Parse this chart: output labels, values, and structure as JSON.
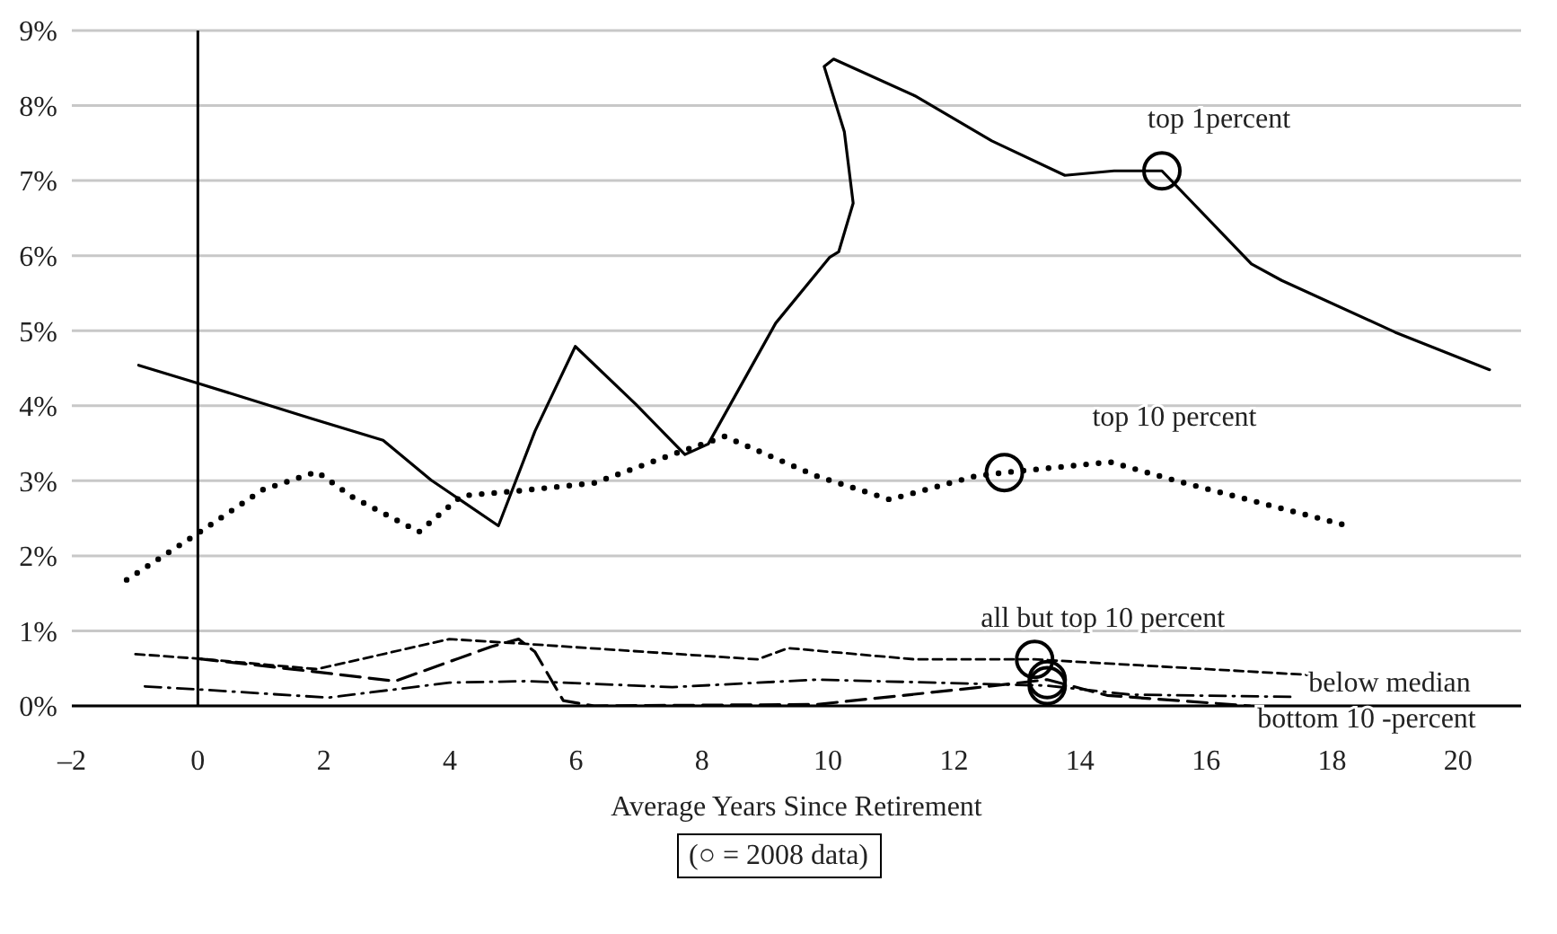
{
  "chart_data": {
    "type": "line",
    "xlabel": "Average Years Since Retirement",
    "xlim": [
      -2,
      21
    ],
    "xticks": [
      {
        "value": -2,
        "label": "–2"
      },
      0,
      2,
      4,
      6,
      8,
      10,
      12,
      14,
      16,
      18,
      20
    ],
    "ylim": [
      0,
      9
    ],
    "yticks": [
      {
        "value": 0,
        "label": "0%"
      },
      {
        "value": 1,
        "label": "1%"
      },
      {
        "value": 2,
        "label": "2%"
      },
      {
        "value": 3,
        "label": "3%"
      },
      {
        "value": 4,
        "label": "4%"
      },
      {
        "value": 5,
        "label": "5%"
      },
      {
        "value": 6,
        "label": "6%"
      },
      {
        "value": 7,
        "label": "7%"
      },
      {
        "value": 8,
        "label": "8%"
      },
      {
        "value": 9,
        "label": "9%"
      }
    ],
    "grid": "y",
    "legend": false,
    "marker": "none",
    "ref_lines": [
      {
        "axis": "x",
        "value": 0,
        "color": "#000000",
        "line_style": "solid"
      }
    ],
    "annotations": [
      "(○ = 2008 data)"
    ],
    "series": [
      {
        "name": "top 1percent",
        "color": "#000000",
        "line_style": "solid",
        "x": [
          -0.94,
          0,
          1.8,
          2.94,
          3.7,
          4.77,
          5.35,
          5.99,
          6.95,
          7.73,
          8.1,
          9.17,
          10.03,
          10.17,
          10.4,
          10.26,
          9.94,
          10.09,
          11.38,
          12.6,
          13.76,
          14.54,
          15.3,
          16.72,
          17.2,
          19.0,
          20.5
        ],
        "values": [
          4.54,
          4.3,
          3.83,
          3.54,
          3.01,
          2.4,
          3.66,
          4.79,
          4.02,
          3.35,
          3.49,
          5.1,
          5.98,
          6.05,
          6.7,
          7.65,
          8.52,
          8.62,
          8.13,
          7.53,
          7.07,
          7.13,
          7.13,
          5.89,
          5.67,
          4.98,
          4.48
        ]
      },
      {
        "name": "top 10 percent",
        "color": "#000000",
        "line_style": "dotted",
        "x": [
          -1.13,
          0,
          1.03,
          1.89,
          2.46,
          3.51,
          4.19,
          5.14,
          6.29,
          7.53,
          8.36,
          9.83,
          10.98,
          12.33,
          12.8,
          14.48,
          15.57,
          18.16
        ],
        "values": [
          1.68,
          2.3,
          2.88,
          3.12,
          2.78,
          2.32,
          2.8,
          2.87,
          2.97,
          3.35,
          3.59,
          3.06,
          2.75,
          3.06,
          3.11,
          3.25,
          2.99,
          2.42
        ]
      },
      {
        "name": "all but top 10 percent",
        "color": "#000000",
        "line_style": "dashed",
        "x": [
          -0.99,
          0,
          1.89,
          3.99,
          5.14,
          8.88,
          9.37,
          11.38,
          13.28,
          17.7
        ],
        "values": [
          0.69,
          0.63,
          0.49,
          0.89,
          0.83,
          0.62,
          0.77,
          0.62,
          0.62,
          0.41
        ]
      },
      {
        "name": "below median",
        "color": "#000000",
        "line_style": "dashdot",
        "x": [
          -0.84,
          0,
          2.07,
          3.99,
          5.23,
          7.53,
          9.83,
          13.48,
          14.8,
          17.4
        ],
        "values": [
          0.26,
          0.22,
          0.11,
          0.31,
          0.33,
          0.25,
          0.35,
          0.27,
          0.15,
          0.12
        ]
      },
      {
        "name": "bottom 10 -percent",
        "color": "#000000",
        "line_style": "longdash",
        "x": [
          0,
          1.7,
          3.13,
          4.66,
          5.09,
          5.35,
          5.8,
          6.29,
          9.83,
          12.33,
          13.48,
          14.43,
          16.7
        ],
        "values": [
          0.63,
          0.47,
          0.33,
          0.79,
          0.89,
          0.72,
          0.07,
          0,
          0.02,
          0.24,
          0.35,
          0.14,
          0
        ]
      },
      {
        "type": "scatter",
        "color": "#000000",
        "marker": "circle",
        "x": [
          15.3,
          12.8,
          13.28,
          13.48,
          13.48
        ],
        "values": [
          7.13,
          3.11,
          0.62,
          0.27,
          0.35
        ]
      }
    ]
  }
}
